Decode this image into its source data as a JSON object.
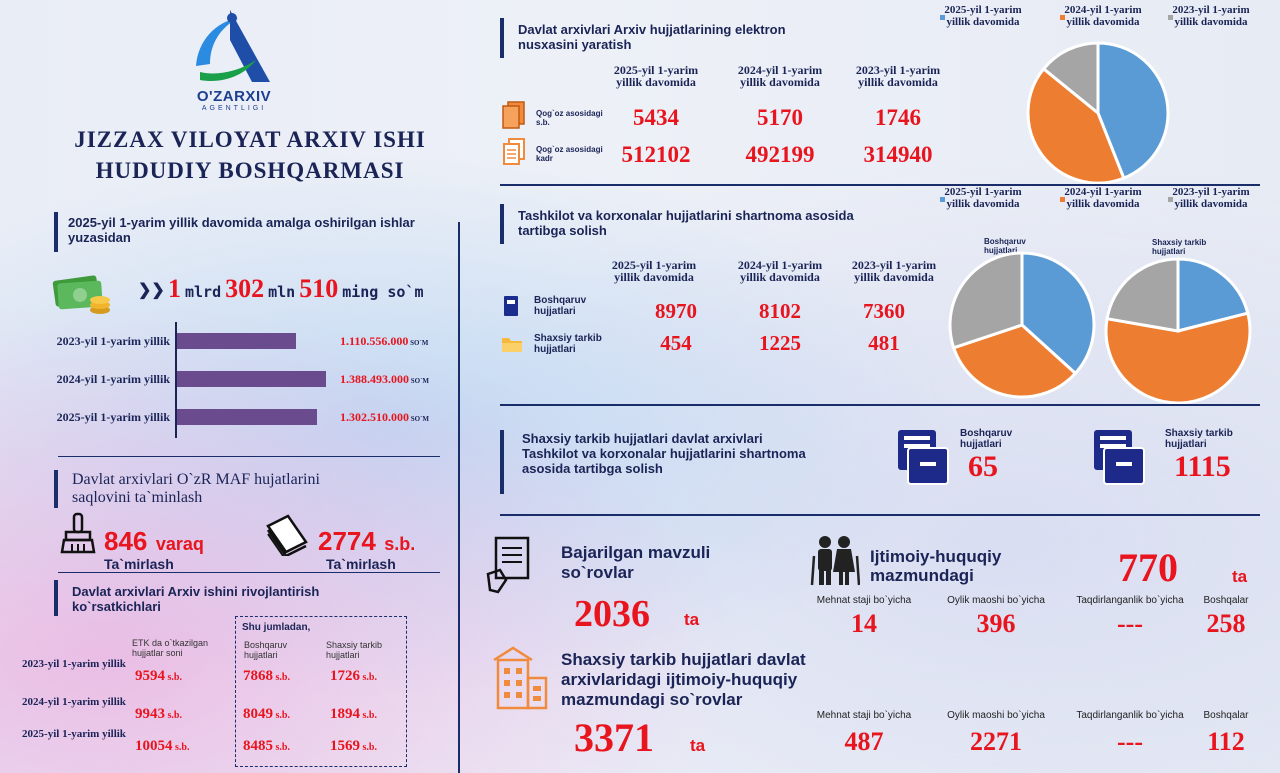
{
  "org": {
    "logo_text": "O'ZARXIV",
    "logo_sub": "AGENTLIGI",
    "title_line1": "JIZZAX VILOYAT ARXIV ISHI",
    "title_line2": "HUDUDIY BOSHQARMASI"
  },
  "revenue": {
    "heading": "2025-yil 1-yarim yillik davomida amalga oshirilgan ishlar yuzasidan",
    "n1": "1",
    "u1": "mlrd",
    "n2": "302",
    "u2": "mln",
    "n3": "510",
    "u3": "ming so`m",
    "unit": "SO`M",
    "bars": [
      {
        "label": "2023-yil 1-yarim yillik",
        "value_text": "1.110.556.000",
        "value": 1110556000
      },
      {
        "label": "2024-yil 1-yarim yillik",
        "value_text": "1.388.493.000",
        "value": 1388493000
      },
      {
        "label": "2025-yil 1-yarim yillik",
        "value_text": "1.302.510.000",
        "value": 1302510000
      }
    ],
    "bar_color": "#6a4b8e"
  },
  "maf": {
    "heading": "Davlat arxivlari O`zR MAF hujatlarini saqlovini ta`minlash",
    "a_value": "846",
    "a_unit": "varaq",
    "a_label": "Ta`mirlash",
    "b_value": "2774",
    "b_unit": "s.b.",
    "b_label": "Ta`mirlash"
  },
  "dev": {
    "heading": "Davlat arxivlari Arxiv ishini rivojlantirish ko`rsatkichlari",
    "etk_header": "ETK da o`tkazilgan hujjatlar soni",
    "box_title": "Shu jumladan,",
    "col_a": "Boshqaruv hujjatlari",
    "col_b": "Shaxsiy tarkib hujjatlari",
    "unit": "s.b.",
    "rows": [
      {
        "label": "2023-yil 1-yarim yillik",
        "etk": "9594",
        "a": "7868",
        "b": "1726"
      },
      {
        "label": "2024-yil 1-yarim yillik",
        "etk": "9943",
        "a": "8049",
        "b": "1894"
      },
      {
        "label": "2025-yil 1-yarim yillik",
        "etk": "10054",
        "a": "8485",
        "b": "1569"
      }
    ]
  },
  "electronic": {
    "heading": "Davlat arxivlari Arxiv hujjatlarining elektron nusxasini yaratish",
    "years": [
      "2025-yil 1-yarim yillik davomida",
      "2024-yil 1-yarim yillik davomida",
      "2023-yil 1-yarim yillik davomida"
    ],
    "rows": [
      {
        "label": "Qog`oz asosidagi s.b.",
        "values": [
          "5434",
          "5170",
          "1746"
        ]
      },
      {
        "label": "Qog`oz asosidagi kadr",
        "values": [
          "512102",
          "492199",
          "314940"
        ]
      }
    ],
    "legend": [
      "2025-yil 1-yarim yillik davomida",
      "2024-yil 1-yarim yillik davomida",
      "2023-yil 1-yarim yillik davomida"
    ]
  },
  "contract": {
    "heading": "Tashkilot va korxonalar hujjatlarini shartnoma asosida tartibga solish",
    "years": [
      "2025-yil 1-yarim yillik davomida",
      "2024-yil 1-yarim yillik davomida",
      "2023-yil 1-yarim yillik davomida"
    ],
    "rows": [
      {
        "label": "Boshqaruv hujjatlari",
        "values": [
          "8970",
          "8102",
          "7360"
        ]
      },
      {
        "label": "Shaxsiy tarkib hujjatlari",
        "values": [
          "454",
          "1225",
          "481"
        ]
      }
    ],
    "legend": [
      "2025-yil 1-yarim yillik davomida",
      "2024-yil 1-yarim yillik davomida",
      "2023-yil 1-yarim yillik davomida"
    ],
    "pie_a_title": "Boshqaruv hujjatlari",
    "pie_b_title": "Shaxsiy tarkib hujjatlari"
  },
  "personal": {
    "heading": "Shaxsiy tarkib hujjatlari davlat arxivlari Tashkilot va korxonalar hujjatlarini shartnoma asosida tartibga solish",
    "a_label": "Boshqaruv hujjatlari",
    "a_value": "65",
    "b_label": "Shaxsiy tarkib hujjatlari",
    "b_value": "1115"
  },
  "queries": {
    "topic_title": "Bajarilgan mavzuli so`rovlar",
    "topic_value": "2036",
    "topic_unit": "ta",
    "social_title": "Ijtimoiy-huquqiy mazmundagi",
    "social_value": "770",
    "social_unit": "ta",
    "categories": [
      "Mehnat staji bo`yicha",
      "Oylik maoshi bo`yicha",
      "Taqdirlanganlik bo`yicha",
      "Boshqalar"
    ],
    "social_values": [
      "14",
      "396",
      "---",
      "258"
    ],
    "personal_title": "Shaxsiy tarkib hujjatlari davlat arxivlaridagi ijtimoiy-huquqiy mazmundagi so`rovlar",
    "personal_value": "3371",
    "personal_unit": "ta",
    "personal_values": [
      "487",
      "2271",
      "---",
      "112"
    ]
  },
  "colors": {
    "navy": "#1a2d6b",
    "red": "#e8141e",
    "pie_2025": "#5b9bd5",
    "pie_2024": "#ed7d31",
    "pie_2023": "#a5a5a5",
    "icon_orange": "#f08a3c"
  },
  "chart_data": [
    {
      "type": "bar",
      "categories": [
        "2023-yil 1-yarim yillik",
        "2024-yil 1-yarim yillik",
        "2025-yil 1-yarim yillik"
      ],
      "values": [
        1110556000,
        1388493000,
        1302510000
      ],
      "orientation": "horizontal"
    },
    {
      "type": "pie",
      "labels": [
        "2025-yil 1-yarim yillik davomida",
        "2024-yil 1-yarim yillik davomida",
        "2023-yil 1-yarim yillik davomida"
      ],
      "values": [
        5434,
        5170,
        1746
      ],
      "colors": [
        "#5b9bd5",
        "#ed7d31",
        "#a5a5a5"
      ]
    },
    {
      "type": "pie",
      "title": "Boshqaruv hujjatlari",
      "labels": [
        "2025-yil 1-yarim yillik davomida",
        "2024-yil 1-yarim yillik davomida",
        "2023-yil 1-yarim yillik davomida"
      ],
      "values": [
        8970,
        8102,
        7360
      ],
      "colors": [
        "#5b9bd5",
        "#ed7d31",
        "#a5a5a5"
      ]
    },
    {
      "type": "pie",
      "title": "Shaxsiy tarkib hujjatlari",
      "labels": [
        "2025-yil 1-yarim yillik davomida",
        "2024-yil 1-yarim yillik davomida",
        "2023-yil 1-yarim yillik davomida"
      ],
      "values": [
        454,
        1225,
        481
      ],
      "colors": [
        "#5b9bd5",
        "#ed7d31",
        "#a5a5a5"
      ]
    }
  ]
}
